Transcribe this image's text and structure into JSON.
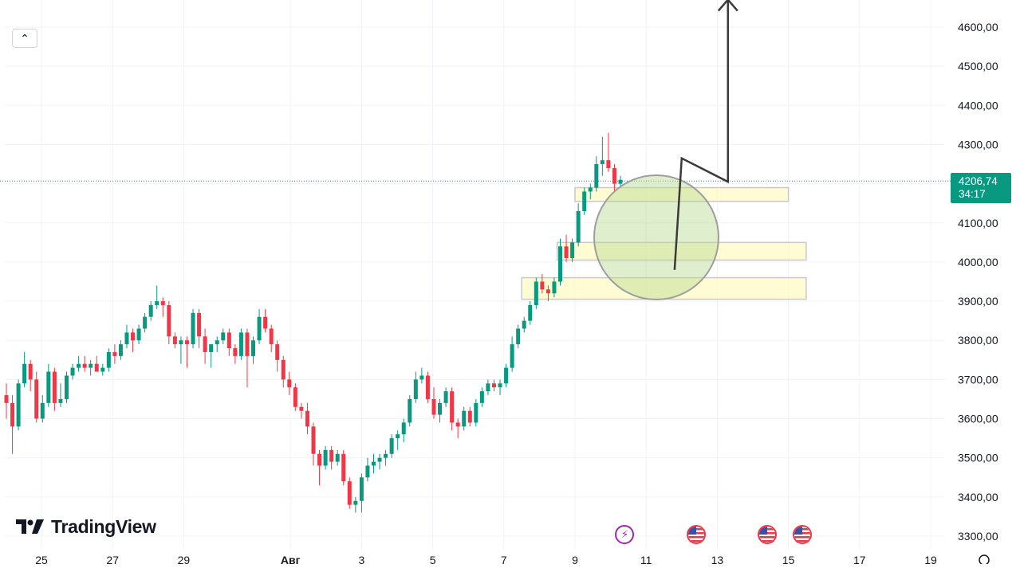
{
  "chart_data": {
    "type": "candlestick",
    "y_axis_ticks": [
      "4600,00",
      "4500,00",
      "4400,00",
      "4300,00",
      "4200,00",
      "4100,00",
      "4000,00",
      "3900,00",
      "3800,00",
      "3700,00",
      "3600,00",
      "3500,00",
      "3400,00",
      "3300,00"
    ],
    "x_axis_ticks": [
      "25",
      "27",
      "29",
      "Авг",
      "3",
      "5",
      "7",
      "9",
      "11",
      "13",
      "15",
      "17",
      "19"
    ],
    "ylim": [
      3270,
      4660
    ],
    "current_price": "4206,74",
    "countdown": "34:17",
    "up_color": "#089981",
    "down_color": "#f23645",
    "candles": [
      [
        3660,
        3690,
        3600,
        3640
      ],
      [
        3640,
        3660,
        3510,
        3580
      ],
      [
        3580,
        3700,
        3570,
        3690
      ],
      [
        3690,
        3770,
        3680,
        3740
      ],
      [
        3740,
        3750,
        3670,
        3700
      ],
      [
        3700,
        3720,
        3590,
        3600
      ],
      [
        3600,
        3660,
        3590,
        3640
      ],
      [
        3640,
        3740,
        3630,
        3720
      ],
      [
        3720,
        3730,
        3620,
        3640
      ],
      [
        3640,
        3690,
        3630,
        3650
      ],
      [
        3650,
        3720,
        3640,
        3710
      ],
      [
        3710,
        3740,
        3700,
        3730
      ],
      [
        3730,
        3760,
        3720,
        3740
      ],
      [
        3740,
        3760,
        3720,
        3730
      ],
      [
        3730,
        3750,
        3710,
        3740
      ],
      [
        3740,
        3760,
        3720,
        3720
      ],
      [
        3720,
        3740,
        3710,
        3730
      ],
      [
        3730,
        3780,
        3720,
        3770
      ],
      [
        3770,
        3790,
        3740,
        3760
      ],
      [
        3760,
        3800,
        3750,
        3790
      ],
      [
        3790,
        3840,
        3780,
        3820
      ],
      [
        3820,
        3830,
        3770,
        3800
      ],
      [
        3800,
        3840,
        3790,
        3830
      ],
      [
        3830,
        3870,
        3820,
        3860
      ],
      [
        3860,
        3900,
        3850,
        3890
      ],
      [
        3890,
        3940,
        3880,
        3900
      ],
      [
        3900,
        3910,
        3860,
        3890
      ],
      [
        3890,
        3900,
        3790,
        3810
      ],
      [
        3810,
        3820,
        3780,
        3790
      ],
      [
        3790,
        3810,
        3740,
        3800
      ],
      [
        3800,
        3810,
        3730,
        3790
      ],
      [
        3790,
        3880,
        3780,
        3870
      ],
      [
        3870,
        3880,
        3780,
        3810
      ],
      [
        3810,
        3830,
        3740,
        3770
      ],
      [
        3770,
        3790,
        3730,
        3790
      ],
      [
        3790,
        3810,
        3770,
        3800
      ],
      [
        3800,
        3830,
        3790,
        3820
      ],
      [
        3820,
        3830,
        3760,
        3780
      ],
      [
        3780,
        3790,
        3740,
        3760
      ],
      [
        3760,
        3830,
        3750,
        3820
      ],
      [
        3820,
        3830,
        3680,
        3760
      ],
      [
        3760,
        3810,
        3740,
        3800
      ],
      [
        3800,
        3880,
        3790,
        3860
      ],
      [
        3860,
        3880,
        3820,
        3830
      ],
      [
        3830,
        3840,
        3770,
        3790
      ],
      [
        3790,
        3800,
        3720,
        3750
      ],
      [
        3750,
        3760,
        3680,
        3700
      ],
      [
        3700,
        3720,
        3660,
        3680
      ],
      [
        3680,
        3690,
        3620,
        3630
      ],
      [
        3630,
        3640,
        3600,
        3620
      ],
      [
        3620,
        3640,
        3560,
        3580
      ],
      [
        3580,
        3590,
        3480,
        3510
      ],
      [
        3510,
        3520,
        3430,
        3480
      ],
      [
        3480,
        3530,
        3470,
        3520
      ],
      [
        3520,
        3530,
        3470,
        3490
      ],
      [
        3490,
        3520,
        3480,
        3510
      ],
      [
        3510,
        3520,
        3430,
        3440
      ],
      [
        3440,
        3450,
        3370,
        3380
      ],
      [
        3380,
        3400,
        3360,
        3390
      ],
      [
        3390,
        3460,
        3360,
        3450
      ],
      [
        3450,
        3500,
        3440,
        3480
      ],
      [
        3480,
        3510,
        3460,
        3490
      ],
      [
        3490,
        3510,
        3470,
        3500
      ],
      [
        3500,
        3520,
        3480,
        3510
      ],
      [
        3510,
        3560,
        3500,
        3550
      ],
      [
        3550,
        3570,
        3520,
        3560
      ],
      [
        3560,
        3600,
        3540,
        3590
      ],
      [
        3590,
        3660,
        3580,
        3650
      ],
      [
        3650,
        3720,
        3640,
        3700
      ],
      [
        3700,
        3730,
        3690,
        3710
      ],
      [
        3710,
        3720,
        3640,
        3650
      ],
      [
        3650,
        3680,
        3600,
        3610
      ],
      [
        3610,
        3650,
        3590,
        3640
      ],
      [
        3640,
        3680,
        3630,
        3670
      ],
      [
        3670,
        3680,
        3570,
        3590
      ],
      [
        3590,
        3600,
        3550,
        3580
      ],
      [
        3580,
        3630,
        3570,
        3620
      ],
      [
        3620,
        3630,
        3580,
        3590
      ],
      [
        3590,
        3650,
        3580,
        3640
      ],
      [
        3640,
        3680,
        3630,
        3670
      ],
      [
        3670,
        3700,
        3660,
        3690
      ],
      [
        3690,
        3700,
        3670,
        3680
      ],
      [
        3680,
        3700,
        3660,
        3690
      ],
      [
        3690,
        3740,
        3680,
        3730
      ],
      [
        3730,
        3810,
        3720,
        3790
      ],
      [
        3790,
        3840,
        3780,
        3830
      ],
      [
        3830,
        3860,
        3820,
        3850
      ],
      [
        3850,
        3900,
        3840,
        3890
      ],
      [
        3890,
        3960,
        3880,
        3950
      ],
      [
        3950,
        3970,
        3920,
        3930
      ],
      [
        3930,
        3940,
        3900,
        3920
      ],
      [
        3920,
        3960,
        3910,
        3950
      ],
      [
        3950,
        4060,
        3940,
        4040
      ],
      [
        4040,
        4070,
        4000,
        4010
      ],
      [
        4010,
        4060,
        4000,
        4050
      ],
      [
        4050,
        4150,
        4040,
        4130
      ],
      [
        4130,
        4190,
        4120,
        4180
      ],
      [
        4180,
        4200,
        4160,
        4190
      ],
      [
        4190,
        4270,
        4180,
        4250
      ],
      [
        4250,
        4320,
        4220,
        4260
      ],
      [
        4260,
        4330,
        4230,
        4240
      ],
      [
        4240,
        4250,
        4180,
        4200
      ],
      [
        4200,
        4220,
        4190,
        4210
      ]
    ],
    "zones": [
      {
        "low": 4155,
        "high": 4190,
        "x_from": "9",
        "x_to": "15"
      },
      {
        "low": 4005,
        "high": 4050,
        "x_from": "8.5",
        "x_to": "15.5"
      },
      {
        "low": 3905,
        "high": 3960,
        "x_from": "7.5",
        "x_to": "15.5"
      }
    ],
    "projection_path": [
      [
        11.8,
        3980
      ],
      [
        12.0,
        4265
      ],
      [
        13.3,
        4205
      ],
      [
        13.3,
        4670
      ]
    ]
  },
  "ui": {
    "collapse_icon": "chevron-up-icon",
    "logo_text": "TradingView"
  },
  "events": [
    {
      "icon": "flash-icon",
      "day": 10.4
    },
    {
      "icon": "us-flag-icon",
      "day": 12.4
    },
    {
      "icon": "us-flag-icon",
      "day": 14.4
    },
    {
      "icon": "us-flag-icon",
      "day": 15.4
    }
  ]
}
